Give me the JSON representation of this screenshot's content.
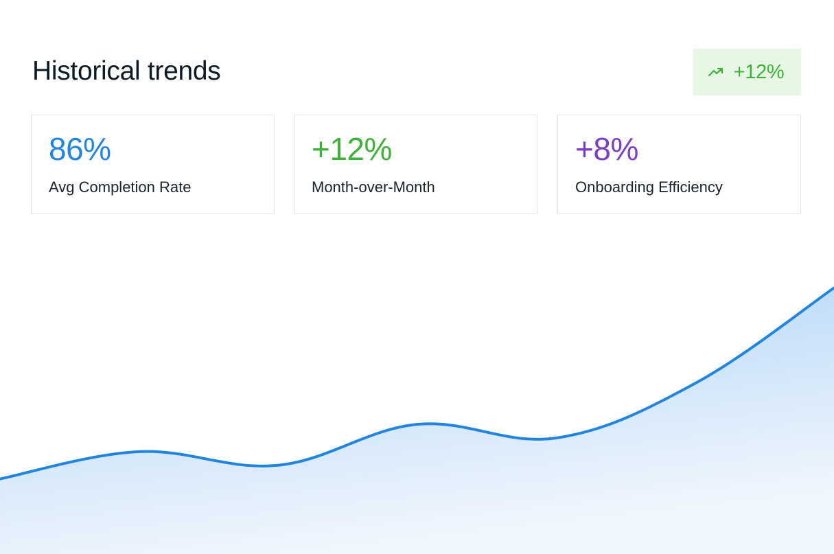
{
  "header": {
    "title": "Historical trends",
    "badge": {
      "icon": "trending-up-icon",
      "value": "+12%",
      "color": "#3fb03a",
      "background": "#e6f7e4"
    }
  },
  "stats": [
    {
      "value": "86%",
      "label": "Avg Completion Rate",
      "color": "#2185e0"
    },
    {
      "value": "+12%",
      "label": "Month-over-Month",
      "color": "#3fb03a"
    },
    {
      "value": "+8%",
      "label": "Onboarding Efficiency",
      "color": "#7a3fc4"
    }
  ],
  "chart_data": {
    "type": "area",
    "title": "",
    "xlabel": "",
    "ylabel": "",
    "grid": false,
    "x": [
      0,
      1,
      2,
      3,
      4,
      5,
      6
    ],
    "y": [
      22,
      30,
      26,
      38,
      34,
      50,
      78
    ],
    "ylim": [
      0,
      100
    ],
    "line_color": "#2185e0",
    "fill_color": "#a9d0f5"
  }
}
